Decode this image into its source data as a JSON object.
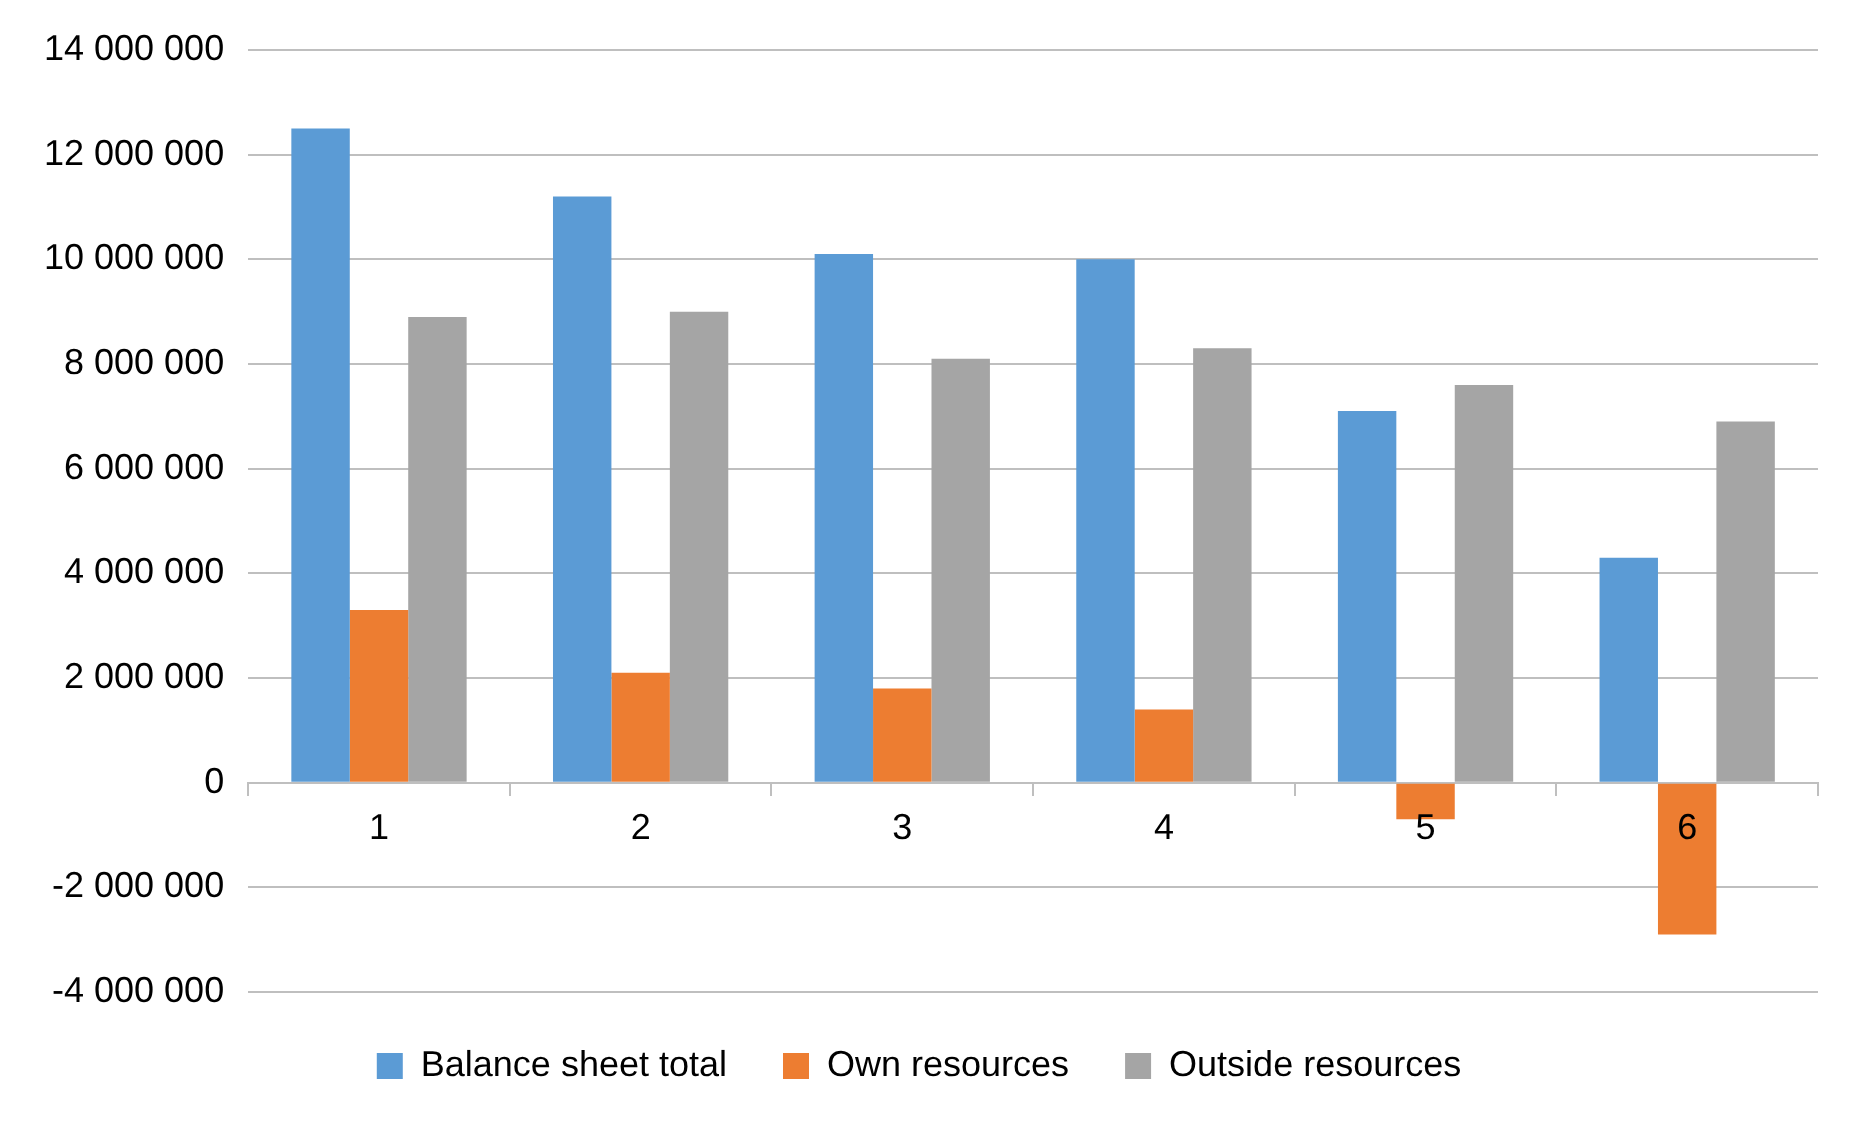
{
  "chart_data": {
    "type": "bar",
    "categories": [
      "1",
      "2",
      "3",
      "4",
      "5",
      "6"
    ],
    "series": [
      {
        "name": "Balance sheet total",
        "color": "#5b9bd5",
        "values": [
          12500000,
          11200000,
          10100000,
          10000000,
          7100000,
          4300000
        ]
      },
      {
        "name": "Own resources",
        "color": "#ed7d31",
        "values": [
          3300000,
          2100000,
          1800000,
          1400000,
          -700000,
          -2900000
        ]
      },
      {
        "name": "Outside resources",
        "color": "#a5a5a5",
        "values": [
          8900000,
          9000000,
          8100000,
          8300000,
          7600000,
          6900000
        ]
      }
    ],
    "ylim": [
      -4000000,
      14000000
    ],
    "yticks": [
      {
        "value": -4000000,
        "label": "-4 000 000"
      },
      {
        "value": -2000000,
        "label": "-2 000 000"
      },
      {
        "value": 0,
        "label": "0"
      },
      {
        "value": 2000000,
        "label": "2 000 000"
      },
      {
        "value": 4000000,
        "label": "4 000 000"
      },
      {
        "value": 6000000,
        "label": "6 000 000"
      },
      {
        "value": 8000000,
        "label": "8 000 000"
      },
      {
        "value": 10000000,
        "label": "10 000 000"
      },
      {
        "value": 12000000,
        "label": "12 000 000"
      },
      {
        "value": 14000000,
        "label": "14 000 000"
      }
    ],
    "grid": "y",
    "legend": "bottom"
  }
}
